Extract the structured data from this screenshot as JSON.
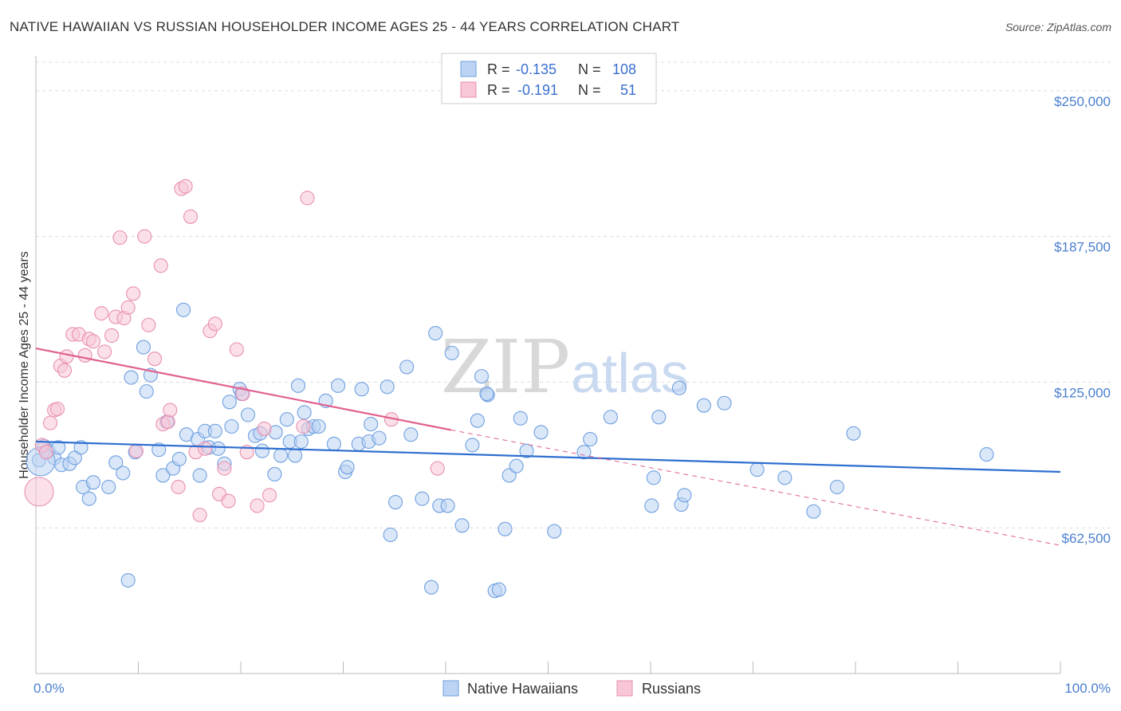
{
  "chart_data": {
    "type": "scatter",
    "title": "NATIVE HAWAIIAN VS RUSSIAN HOUSEHOLDER INCOME AGES 25 - 44 YEARS CORRELATION CHART",
    "source": "Source: ZipAtlas.com",
    "xlabel": "",
    "ylabel": "Householder Income Ages 25 - 44 years",
    "xlim": [
      0,
      100
    ],
    "ylim": [
      0,
      265000
    ],
    "x_tick_labels": {
      "min": "0.0%",
      "max": "100.0%"
    },
    "y_ticks": [
      {
        "value": 62500,
        "label": "$62,500"
      },
      {
        "value": 125000,
        "label": "$125,000"
      },
      {
        "value": 187500,
        "label": "$187,500"
      },
      {
        "value": 250000,
        "label": "$250,000"
      }
    ],
    "watermark": {
      "zip": "ZIP",
      "atlas": "atlas"
    },
    "legend": {
      "r_label": "R =",
      "n_label": "N =",
      "rows": [
        {
          "series": "Native Hawaiians",
          "r": "-0.135",
          "n": "108",
          "color": "#6fa0e0",
          "fill": "#bcd3f3"
        },
        {
          "series": "Russians",
          "r": "-0.191",
          "n": "51",
          "color": "#e890b0",
          "fill": "#f8c6d7"
        }
      ]
    },
    "series": [
      {
        "name": "Native Hawaiians",
        "color": "#6fa0e0",
        "fill": "#bcd3f3",
        "trend": {
          "x0": 0,
          "y0": 99500,
          "x1": 100,
          "y1": 86500,
          "style": "solid",
          "color": "#2e6fd0"
        },
        "points": [
          [
            0.3,
            91500
          ],
          [
            0.8,
            97500
          ],
          [
            1.2,
            95500
          ],
          [
            1.8,
            92500
          ],
          [
            2.2,
            97000
          ],
          [
            2.5,
            89500
          ],
          [
            3.3,
            90000
          ],
          [
            3.8,
            92500
          ],
          [
            4.4,
            97000
          ],
          [
            4.6,
            80000
          ],
          [
            5.2,
            75000
          ],
          [
            5.6,
            82000
          ],
          [
            7.1,
            80000
          ],
          [
            7.8,
            90500
          ],
          [
            8.5,
            86000
          ],
          [
            9.0,
            40000
          ],
          [
            9.3,
            127000
          ],
          [
            9.7,
            95000
          ],
          [
            10.8,
            121000
          ],
          [
            10.5,
            140000
          ],
          [
            11.2,
            128000
          ],
          [
            12.4,
            85000
          ],
          [
            12.8,
            108000
          ],
          [
            13.4,
            88000
          ],
          [
            14.0,
            92000
          ],
          [
            14.4,
            156000
          ],
          [
            14.7,
            102500
          ],
          [
            15.8,
            100500
          ],
          [
            16.0,
            85000
          ],
          [
            16.5,
            104000
          ],
          [
            16.9,
            97000
          ],
          [
            17.8,
            96500
          ],
          [
            18.4,
            90000
          ],
          [
            18.9,
            116500
          ],
          [
            19.1,
            106000
          ],
          [
            19.9,
            122000
          ],
          [
            20.1,
            120000
          ],
          [
            20.7,
            111000
          ],
          [
            21.4,
            102000
          ],
          [
            21.9,
            103000
          ],
          [
            22.1,
            95500
          ],
          [
            23.3,
            85500
          ],
          [
            23.4,
            103500
          ],
          [
            23.9,
            93500
          ],
          [
            24.5,
            109000
          ],
          [
            24.8,
            99500
          ],
          [
            25.3,
            93500
          ],
          [
            25.6,
            123500
          ],
          [
            25.9,
            99500
          ],
          [
            26.2,
            112000
          ],
          [
            26.6,
            105000
          ],
          [
            27.1,
            106000
          ],
          [
            27.6,
            106000
          ],
          [
            28.3,
            117000
          ],
          [
            29.1,
            98500
          ],
          [
            29.5,
            123500
          ],
          [
            30.2,
            86500
          ],
          [
            30.4,
            88500
          ],
          [
            31.5,
            98500
          ],
          [
            31.8,
            122000
          ],
          [
            32.5,
            99500
          ],
          [
            32.7,
            107000
          ],
          [
            33.5,
            101000
          ],
          [
            34.3,
            123000
          ],
          [
            34.6,
            59500
          ],
          [
            35.1,
            73500
          ],
          [
            36.2,
            131500
          ],
          [
            36.6,
            102500
          ],
          [
            37.7,
            75000
          ],
          [
            38.6,
            37000
          ],
          [
            39.0,
            146000
          ],
          [
            39.4,
            72000
          ],
          [
            40.2,
            72000
          ],
          [
            40.6,
            137500
          ],
          [
            41.6,
            63500
          ],
          [
            42.6,
            98000
          ],
          [
            43.1,
            108500
          ],
          [
            43.5,
            127500
          ],
          [
            44.1,
            119500
          ],
          [
            44.8,
            35500
          ],
          [
            45.2,
            36000
          ],
          [
            45.8,
            62000
          ],
          [
            46.2,
            85000
          ],
          [
            46.9,
            89000
          ],
          [
            47.3,
            109500
          ],
          [
            47.9,
            95500
          ],
          [
            49.3,
            103500
          ],
          [
            50.6,
            61000
          ],
          [
            53.5,
            95000
          ],
          [
            54.1,
            100500
          ],
          [
            56.1,
            110000
          ],
          [
            60.8,
            110000
          ],
          [
            60.3,
            84000
          ],
          [
            60.1,
            72000
          ],
          [
            62.8,
            122500
          ],
          [
            63.0,
            72500
          ],
          [
            63.3,
            76500
          ],
          [
            65.2,
            115000
          ],
          [
            67.2,
            116000
          ],
          [
            70.4,
            87500
          ],
          [
            73.1,
            84000
          ],
          [
            75.9,
            69500
          ],
          [
            78.2,
            80000
          ],
          [
            79.8,
            103000
          ],
          [
            92.8,
            94000
          ],
          [
            44.0,
            120000
          ],
          [
            17.5,
            104000
          ],
          [
            12.0,
            96000
          ]
        ]
      },
      {
        "name": "Russians",
        "color": "#e890b0",
        "fill": "#f8c6d7",
        "trend": {
          "x0": 0,
          "y0": 139500,
          "x1": 40.5,
          "y1": 104500,
          "style": "solid",
          "color": "#e06090",
          "dash_x1": 100,
          "dash_y1": 55000
        },
        "points": [
          [
            0.6,
            98000
          ],
          [
            1.0,
            95000
          ],
          [
            1.4,
            107500
          ],
          [
            1.8,
            113000
          ],
          [
            2.1,
            113500
          ],
          [
            2.4,
            132000
          ],
          [
            2.8,
            130000
          ],
          [
            3.0,
            136000
          ],
          [
            3.6,
            145500
          ],
          [
            4.2,
            145500
          ],
          [
            4.8,
            136500
          ],
          [
            5.2,
            143500
          ],
          [
            5.6,
            142500
          ],
          [
            6.4,
            154500
          ],
          [
            6.7,
            138000
          ],
          [
            7.4,
            145000
          ],
          [
            7.8,
            153000
          ],
          [
            8.2,
            187000
          ],
          [
            8.6,
            152500
          ],
          [
            9.0,
            157000
          ],
          [
            9.5,
            163000
          ],
          [
            9.8,
            95500
          ],
          [
            10.6,
            187500
          ],
          [
            11.0,
            149500
          ],
          [
            11.6,
            135000
          ],
          [
            12.2,
            175000
          ],
          [
            12.4,
            107000
          ],
          [
            12.9,
            108000
          ],
          [
            13.1,
            113000
          ],
          [
            13.9,
            80000
          ],
          [
            14.2,
            208000
          ],
          [
            14.6,
            209000
          ],
          [
            15.1,
            196000
          ],
          [
            15.6,
            95000
          ],
          [
            16.0,
            68000
          ],
          [
            16.5,
            96500
          ],
          [
            17.0,
            147000
          ],
          [
            17.5,
            150000
          ],
          [
            17.9,
            77000
          ],
          [
            18.4,
            88000
          ],
          [
            18.8,
            74000
          ],
          [
            19.6,
            139000
          ],
          [
            20.2,
            120000
          ],
          [
            20.6,
            95000
          ],
          [
            21.6,
            72000
          ],
          [
            22.3,
            105000
          ],
          [
            22.8,
            76500
          ],
          [
            26.1,
            106000
          ],
          [
            26.5,
            204000
          ],
          [
            34.7,
            109000
          ],
          [
            39.2,
            88000
          ]
        ],
        "large_points": [
          [
            0.0,
            78000
          ]
        ]
      }
    ]
  }
}
